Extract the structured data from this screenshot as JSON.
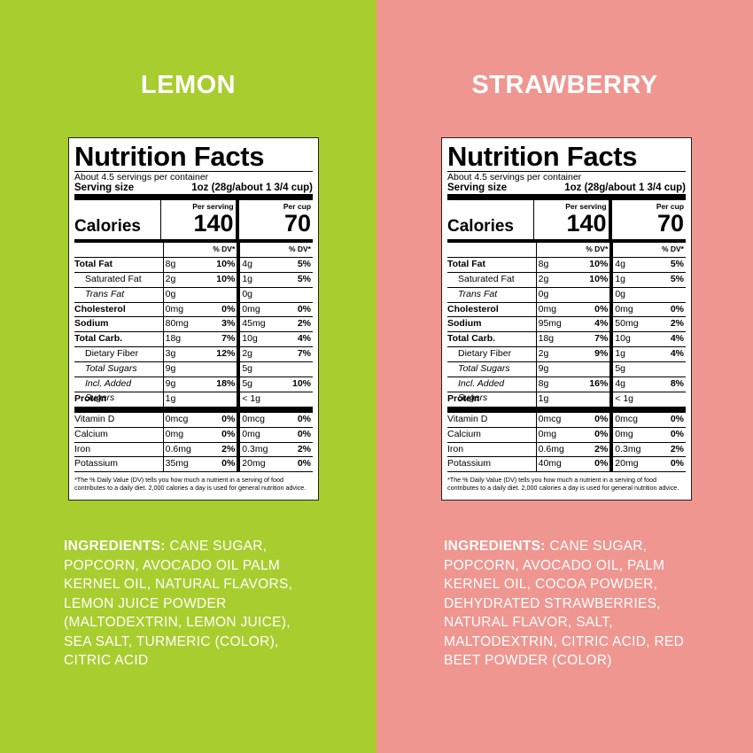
{
  "panels": [
    {
      "title": "LEMON",
      "label": {
        "heading": "Nutrition Facts",
        "servings": "About 4.5 servings per container",
        "serving_size_label": "Serving size",
        "serving_size_value": "1oz (28g/about 1 3/4 cup)",
        "calories_label": "Calories",
        "column_headers": [
          "Per serving",
          "Per cup"
        ],
        "calories": [
          "140",
          "70"
        ],
        "dv_header": "% DV*",
        "nutrients": [
          [
            "Total Fat",
            "8g",
            "10%",
            "4g",
            "5%"
          ],
          [
            "Saturated Fat",
            "2g",
            "10%",
            "1g",
            "5%"
          ],
          [
            "Trans Fat",
            "0g",
            null,
            "0g",
            null
          ],
          [
            "Cholesterol",
            "0mg",
            "0%",
            "0mg",
            "0%"
          ],
          [
            "Sodium",
            "80mg",
            "3%",
            "45mg",
            "2%"
          ],
          [
            "Total Carb.",
            "18g",
            "7%",
            "10g",
            "4%"
          ],
          [
            "Dietary Fiber",
            "3g",
            "12%",
            "2g",
            "7%"
          ],
          [
            "Total Sugars",
            "9g",
            null,
            "5g",
            null
          ],
          [
            "Incl. Added Sugars",
            "9g",
            "18%",
            "5g",
            "10%"
          ],
          [
            "Protein",
            "1g",
            null,
            "< 1g",
            null
          ]
        ],
        "vitamins": [
          [
            "Vitamin D",
            "0mcg",
            "0%",
            "0mcg",
            "0%"
          ],
          [
            "Calcium",
            "0mg",
            "0%",
            "0mg",
            "0%"
          ],
          [
            "Iron",
            "0.6mg",
            "2%",
            "0.3mg",
            "2%"
          ],
          [
            "Potassium",
            "35mg",
            "0%",
            "20mg",
            "0%"
          ]
        ],
        "footnote": "*The % Daily Value (DV) tells you how much a nutrient in a serving of food contributes to a daily diet. 2,000 calories a day is used for general nutrition advice."
      },
      "ingredients": {
        "heading": "INGREDIENTS:",
        "text": "CANE SUGAR, POPCORN, AVOCADO OIL PALM KERNEL OIL, NATURAL FLAVORS, LEMON JUICE POWDER (MALTODEXTRIN, LEMON JUICE), SEA SALT, TURMERIC (COLOR), CITRIC ACID"
      }
    },
    {
      "title": "STRAWBERRY",
      "label": {
        "heading": "Nutrition Facts",
        "servings": "About 4.5 servings per container",
        "serving_size_label": "Serving size",
        "serving_size_value": "1oz (28g/about 1 3/4 cup)",
        "calories_label": "Calories",
        "column_headers": [
          "Per serving",
          "Per cup"
        ],
        "calories": [
          "140",
          "70"
        ],
        "dv_header": "% DV*",
        "nutrients": [
          [
            "Total Fat",
            "8g",
            "10%",
            "4g",
            "5%"
          ],
          [
            "Saturated Fat",
            "2g",
            "10%",
            "1g",
            "5%"
          ],
          [
            "Trans Fat",
            "0g",
            null,
            "0g",
            null
          ],
          [
            "Cholesterol",
            "0mg",
            "0%",
            "0mg",
            "0%"
          ],
          [
            "Sodium",
            "95mg",
            "4%",
            "50mg",
            "2%"
          ],
          [
            "Total Carb.",
            "18g",
            "7%",
            "10g",
            "4%"
          ],
          [
            "Dietary Fiber",
            "2g",
            "9%",
            "1g",
            "4%"
          ],
          [
            "Total Sugars",
            "9g",
            null,
            "5g",
            null
          ],
          [
            "Incl. Added Sugars",
            "8g",
            "16%",
            "4g",
            "8%"
          ],
          [
            "Protein",
            "1g",
            null,
            "< 1g",
            null
          ]
        ],
        "vitamins": [
          [
            "Vitamin D",
            "0mcg",
            "0%",
            "0mcg",
            "0%"
          ],
          [
            "Calcium",
            "0mg",
            "0%",
            "0mg",
            "0%"
          ],
          [
            "Iron",
            "0.6mg",
            "2%",
            "0.3mg",
            "2%"
          ],
          [
            "Potassium",
            "40mg",
            "0%",
            "20mg",
            "0%"
          ]
        ],
        "footnote": "*The % Daily Value (DV) tells you how much a nutrient in a serving of food contributes to a daily diet. 2,000 calories a day is used for general nutrition advice."
      },
      "ingredients": {
        "heading": "INGREDIENTS:",
        "text": "CANE SUGAR, POPCORN, AVOCADO OIL, PALM KERNEL OIL, COCOA POWDER, DEHYDRATED STRAWBERRIES, NATURAL FLAVOR, SALT, MALTODEXTRIN, CITRIC ACID, RED BEET POWDER (COLOR)"
      }
    }
  ]
}
